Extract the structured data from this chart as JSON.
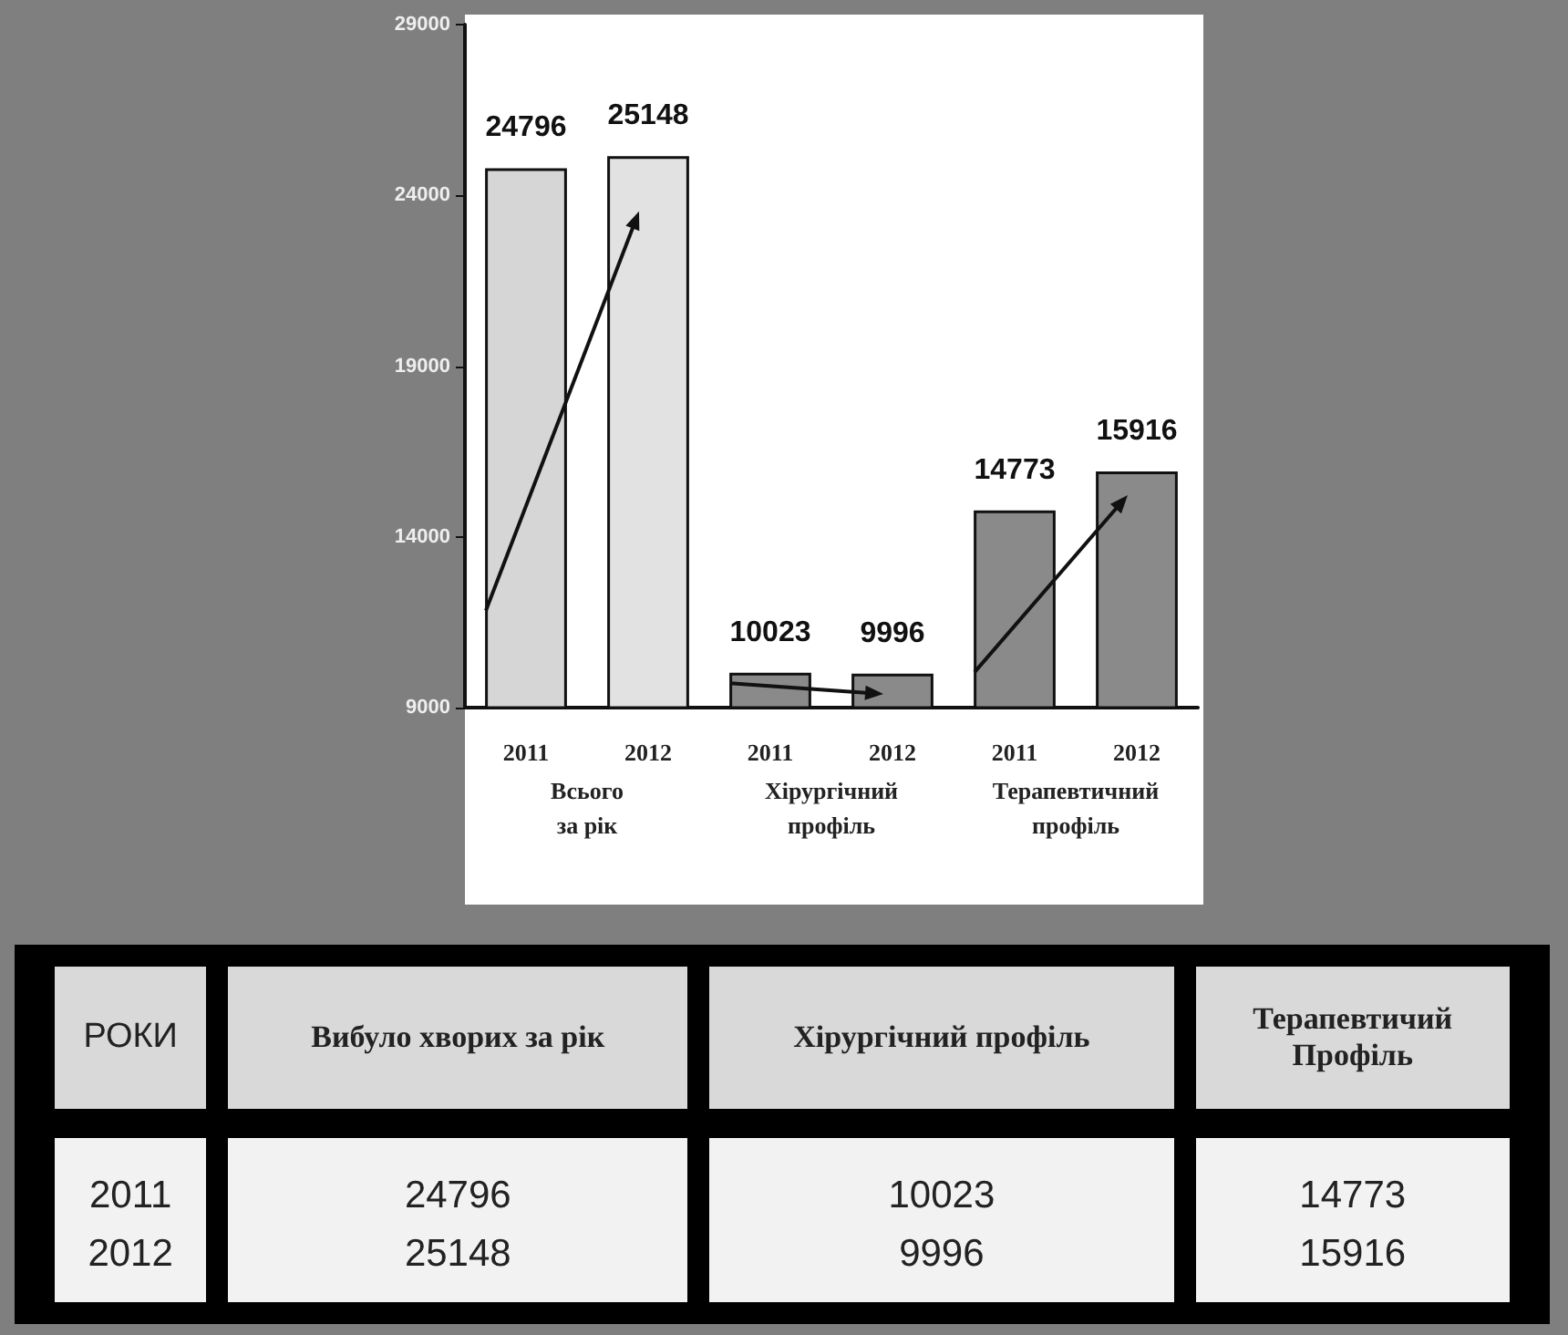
{
  "chart_data": [
    {
      "type": "bar",
      "categories": [
        "2011",
        "2012",
        "2011",
        "2012",
        "2011",
        "2012"
      ],
      "values": [
        24796,
        25148,
        10023,
        9996,
        14773,
        15916
      ],
      "colors": [
        "#d6d6d6",
        "#e2e2e2",
        "#8a8a8a",
        "#8a8a8a",
        "#8a8a8a",
        "#8a8a8a"
      ],
      "ylim": [
        9000,
        29000
      ],
      "yticks": [
        9000,
        14000,
        19000,
        24000,
        29000
      ],
      "grid": false,
      "data_labels": true,
      "annotations": [
        "Всього\nза рік",
        "Хірургічний\nпрофіль",
        "Терапевтичний\nпрофіль"
      ]
    },
    {
      "type": "other",
      "legend_title": "РОКИ",
      "categories": [
        "Вибуло хворих за рік",
        "Хірургічний профіль",
        "Терапевтичий\nПрофіль"
      ],
      "series": [
        {
          "name": "2011",
          "values": [
            24796,
            10023,
            14773
          ]
        },
        {
          "name": "2012",
          "values": [
            25148,
            9996,
            15916
          ]
        }
      ],
      "data_labels": true
    }
  ]
}
